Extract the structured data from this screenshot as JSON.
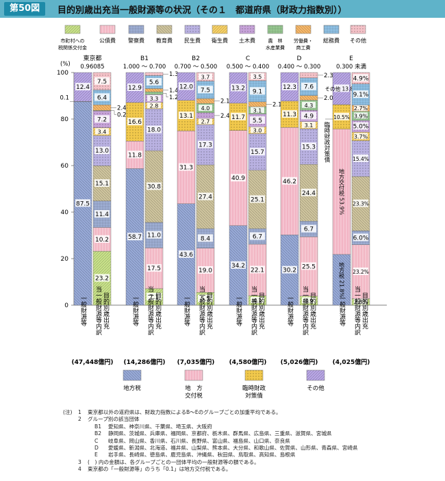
{
  "header": {
    "badge": "第50図",
    "title": "目的別歳出充当一般財源等の状況（その１　都道府県（財政力指数別））"
  },
  "colors": {
    "shichoson": "#c9e28a",
    "kosai": "#f2b7c4",
    "keisatsu": "#9eaed3",
    "kyoiku": "#cfc59e",
    "minsei": "#bab2e2",
    "eisei": "#f8d268",
    "doboku": "#c7a3d9",
    "norin": "#97c791",
    "rodo": "#f7b86a",
    "somu": "#8fc0e4",
    "other": "#f4c2c8",
    "chiho": "#98aad8",
    "kofu": "#f2b4c4",
    "rinji": "#f2c94c",
    "sonota": "#b9a7e6"
  },
  "legend_top": [
    {
      "key": "shichoson",
      "lines": [
        "市町村への",
        "税関係交付金"
      ]
    },
    {
      "key": "kosai",
      "lines": [
        "公債費"
      ]
    },
    {
      "key": "keisatsu",
      "lines": [
        "警察費"
      ]
    },
    {
      "key": "kyoiku",
      "lines": [
        "教育費"
      ]
    },
    {
      "key": "minsei",
      "lines": [
        "民生費"
      ]
    },
    {
      "key": "eisei",
      "lines": [
        "衛生費"
      ]
    },
    {
      "key": "doboku",
      "lines": [
        "土木費"
      ]
    },
    {
      "key": "norin",
      "lines": [
        "農　林",
        "水産業費"
      ]
    },
    {
      "key": "rodo",
      "lines": [
        "労働費・",
        "商工費"
      ]
    },
    {
      "key": "somu",
      "lines": [
        "総務費"
      ]
    },
    {
      "key": "other",
      "lines": [
        "その他"
      ]
    }
  ],
  "legend_bottom": [
    {
      "key": "chiho",
      "lines": [
        "地方税"
      ]
    },
    {
      "key": "kofu",
      "lines": [
        "地　方",
        "交付税"
      ]
    },
    {
      "key": "rinji",
      "lines": [
        "臨時財政",
        "対策債"
      ]
    },
    {
      "key": "sonota",
      "lines": [
        "その他"
      ]
    }
  ],
  "chart_data": {
    "type": "bar",
    "stacked": true,
    "ylabel": "(%)",
    "ylim": [
      0,
      100
    ],
    "yticks": [
      "0",
      "20",
      "40",
      "60",
      "80",
      "100"
    ],
    "bar_labels": [
      "一般財源等",
      "目的別歳出充当一般財源等内訳"
    ],
    "groups": [
      {
        "name": "東京都",
        "range": "0.96085",
        "total": "(47,448億円)",
        "sources": [
          {
            "key": "chiho",
            "value": 87.5,
            "label": "87.5"
          },
          {
            "key": "kofu",
            "value": 0.1,
            "label": "0.1"
          },
          {
            "key": "sonota",
            "value": 12.4,
            "label": "12.4"
          }
        ],
        "expenditures": [
          {
            "key": "shichoson",
            "value": 23.2,
            "label": "23.2"
          },
          {
            "key": "kosai",
            "value": 10.2,
            "label": "10.2"
          },
          {
            "key": "keisatsu",
            "value": 11.4,
            "label": "11.4"
          },
          {
            "key": "kyoiku",
            "value": 15.1,
            "label": "15.1"
          },
          {
            "key": "minsei",
            "value": 13.0,
            "label": "13.0"
          },
          {
            "key": "eisei",
            "value": 3.4,
            "label": "3.4"
          },
          {
            "key": "doboku",
            "value": 7.2,
            "label": "7.2"
          },
          {
            "key": "norin",
            "value": 0.2,
            "label": "0.2"
          },
          {
            "key": "rodo",
            "value": 2.4,
            "label": "2.4"
          },
          {
            "key": "somu",
            "value": 6.4,
            "label": "6.4"
          },
          {
            "key": "other",
            "value": 7.5,
            "label": "7.5"
          }
        ]
      },
      {
        "name": "B1",
        "range": "1.000 ～ 0.700",
        "total": "(14,286億円)",
        "sources": [
          {
            "key": "chiho",
            "value": 58.7,
            "label": "58.7"
          },
          {
            "key": "kofu",
            "value": 11.8,
            "label": "11.8"
          },
          {
            "key": "rinji",
            "value": 16.6,
            "label": "16.6"
          },
          {
            "key": "sonota",
            "value": 12.9,
            "label": "12.9"
          }
        ],
        "expenditures": [
          {
            "key": "shichoson",
            "value": 7.1,
            "label": "7.1"
          },
          {
            "key": "kosai",
            "value": 17.5,
            "label": "17.5"
          },
          {
            "key": "keisatsu",
            "value": 11.0,
            "label": "11.0"
          },
          {
            "key": "kyoiku",
            "value": 30.8,
            "label": "30.8"
          },
          {
            "key": "minsei",
            "value": 18.0,
            "label": "18.0"
          },
          {
            "key": "eisei",
            "value": 2.8,
            "label": "2.8"
          },
          {
            "key": "doboku",
            "value": 3.3,
            "label": "3.3"
          },
          {
            "key": "norin",
            "value": 1.2,
            "label": "1.2"
          },
          {
            "key": "rodo",
            "value": 1.4,
            "label": "1.4"
          },
          {
            "key": "somu",
            "value": 5.6,
            "label": "5.6"
          },
          {
            "key": "other",
            "value": 1.3,
            "label": "1.3"
          }
        ]
      },
      {
        "name": "B2",
        "range": "0.700 ～ 0.500",
        "total": "(7,035億円)",
        "sources": [
          {
            "key": "chiho",
            "value": 43.6,
            "label": "43.6"
          },
          {
            "key": "kofu",
            "value": 31.3,
            "label": "31.3"
          },
          {
            "key": "rinji",
            "value": 13.1,
            "label": "13.1"
          },
          {
            "key": "sonota",
            "value": 12.0,
            "label": "12.0"
          }
        ],
        "expenditures": [
          {
            "key": "shichoson",
            "value": 5.5,
            "label": "5.5"
          },
          {
            "key": "kosai",
            "value": 19.0,
            "label": "19.0"
          },
          {
            "key": "keisatsu",
            "value": 8.4,
            "label": "8.4"
          },
          {
            "key": "kyoiku",
            "value": 27.4,
            "label": "27.4"
          },
          {
            "key": "minsei",
            "value": 17.3,
            "label": "17.3"
          },
          {
            "key": "eisei",
            "value": 2.7,
            "label": "2.7"
          },
          {
            "key": "doboku",
            "value": 2.4,
            "label": "2.4"
          },
          {
            "key": "norin",
            "value": 4.0,
            "label": "4.0"
          },
          {
            "key": "rodo",
            "value": 2.1,
            "label": "2.1"
          },
          {
            "key": "somu",
            "value": 7.5,
            "label": "7.5"
          },
          {
            "key": "other",
            "value": 3.7,
            "label": "3.7"
          }
        ]
      },
      {
        "name": "C",
        "range": "0.500 ～ 0.400",
        "total": "(4,580億円)",
        "sources": [
          {
            "key": "chiho",
            "value": 34.2,
            "label": "34.2"
          },
          {
            "key": "kofu",
            "value": 40.9,
            "label": "40.9"
          },
          {
            "key": "rinji",
            "value": 11.7,
            "label": "11.7"
          },
          {
            "key": "sonota",
            "value": 13.2,
            "label": "13.2"
          }
        ],
        "expenditures": [
          {
            "key": "shichoson",
            "value": 4.1,
            "label": "4.1"
          },
          {
            "key": "kosai",
            "value": 22.1,
            "label": "22.1"
          },
          {
            "key": "keisatsu",
            "value": 6.7,
            "label": "6.7"
          },
          {
            "key": "kyoiku",
            "value": 25.1,
            "label": "25.1"
          },
          {
            "key": "minsei",
            "value": 15.7,
            "label": "15.7"
          },
          {
            "key": "eisei",
            "value": 3.0,
            "label": "3.0"
          },
          {
            "key": "doboku",
            "value": 5.5,
            "label": "5.5"
          },
          {
            "key": "norin",
            "value": 3.1,
            "label": "3.1"
          },
          {
            "key": "rodo",
            "value": 2.1,
            "label": "2.1"
          },
          {
            "key": "somu",
            "value": 9.1,
            "label": "9.1"
          },
          {
            "key": "other",
            "value": 3.5,
            "label": "3.5"
          }
        ]
      },
      {
        "name": "D",
        "range": "0.400 ～ 0.300",
        "total": "(5,026億円)",
        "sources": [
          {
            "key": "chiho",
            "value": 30.2,
            "label": "30.2"
          },
          {
            "key": "kofu",
            "value": 46.2,
            "label": "46.2"
          },
          {
            "key": "rinji",
            "value": 11.3,
            "label": "11.3"
          },
          {
            "key": "sonota",
            "value": 12.3,
            "label": "12.3"
          }
        ],
        "expenditures": [
          {
            "key": "shichoson",
            "value": 3.9,
            "label": "3.9"
          },
          {
            "key": "kosai",
            "value": 25.5,
            "label": "25.5"
          },
          {
            "key": "keisatsu",
            "value": 6.7,
            "label": "6.7"
          },
          {
            "key": "kyoiku",
            "value": 24.4,
            "label": "24.4"
          },
          {
            "key": "minsei",
            "value": 15.3,
            "label": "15.3"
          },
          {
            "key": "eisei",
            "value": 3.1,
            "label": "3.1"
          },
          {
            "key": "doboku",
            "value": 4.9,
            "label": "4.9"
          },
          {
            "key": "norin",
            "value": 4.3,
            "label": "4.3"
          },
          {
            "key": "rodo",
            "value": 2.0,
            "label": "2.0"
          },
          {
            "key": "somu",
            "value": 7.6,
            "label": "7.6"
          },
          {
            "key": "other",
            "value": 2.3,
            "label": "2.3"
          }
        ]
      },
      {
        "name": "E",
        "range": "0.300 未満",
        "total": "(4,025億円)",
        "sources": [
          {
            "key": "chiho",
            "value": 21.8,
            "label": "地方税 21.8%"
          },
          {
            "key": "kofu",
            "value": 53.9,
            "label": "地方交付税 53.9%"
          },
          {
            "key": "rinji",
            "value": 10.5,
            "label": "10.5%"
          },
          {
            "key": "sonota",
            "value": 13.8,
            "label": "その他 13.8%"
          }
        ],
        "expenditures": [
          {
            "key": "shichoson",
            "value": 2.8,
            "label": "2.8%"
          },
          {
            "key": "kosai",
            "value": 23.2,
            "label": "23.2%"
          },
          {
            "key": "keisatsu",
            "value": 6.0,
            "label": "6.0%"
          },
          {
            "key": "kyoiku",
            "value": 23.3,
            "label": "23.3%"
          },
          {
            "key": "minsei",
            "value": 15.4,
            "label": "15.4%"
          },
          {
            "key": "eisei",
            "value": 3.7,
            "label": "3.7%"
          },
          {
            "key": "doboku",
            "value": 5.0,
            "label": "5.0%"
          },
          {
            "key": "norin",
            "value": 3.9,
            "label": "3.9%"
          },
          {
            "key": "rodo",
            "value": 2.7,
            "label": "2.7%"
          },
          {
            "key": "somu",
            "value": 9.1,
            "label": "9.1%"
          },
          {
            "key": "other",
            "value": 4.9,
            "label": "4.9%"
          }
        ]
      }
    ]
  },
  "annotations": {
    "rinji_vertical": "臨時財政対策債"
  },
  "notes": [
    {
      "k": "(注)",
      "n": "1",
      "g": "",
      "t": "東京都以外の道府県は、財政力指数によるB～Eのグループごとの加重平均である。"
    },
    {
      "k": "",
      "n": "2",
      "g": "",
      "t": "グループ別の該当団体"
    },
    {
      "k": "",
      "n": "",
      "g": "B1",
      "t": "愛知県、神奈川県、千葉県、埼玉県、大阪府"
    },
    {
      "k": "",
      "n": "",
      "g": "B2",
      "t": "静岡県、茨城県、兵庫県、福岡県、京都府、栃木県、群馬県、広島県、三重県、滋賀県、宮城県"
    },
    {
      "k": "",
      "n": "",
      "g": "C",
      "t": "岐阜県、岡山県、香川県、石川県、長野県、富山県、福島県、山口県、奈良県"
    },
    {
      "k": "",
      "n": "",
      "g": "D",
      "t": "愛媛県、新潟県、北海道、福井県、山梨県、熊本県、大分県、和歌山県、佐賀県、山形県、青森県、宮崎県"
    },
    {
      "k": "",
      "n": "",
      "g": "E",
      "t": "岩手県、長崎県、徳島県、鹿児島県、沖縄県、秋田県、鳥取県、高知県、島根県"
    },
    {
      "k": "",
      "n": "3",
      "g": "",
      "t": "(　) 内の金額は、各グループごとの一団体平均の一般財源等の額である。"
    },
    {
      "k": "",
      "n": "4",
      "g": "",
      "t": "東京都の「一般財源等」のうち「0.1」は地方交付税である。"
    }
  ]
}
